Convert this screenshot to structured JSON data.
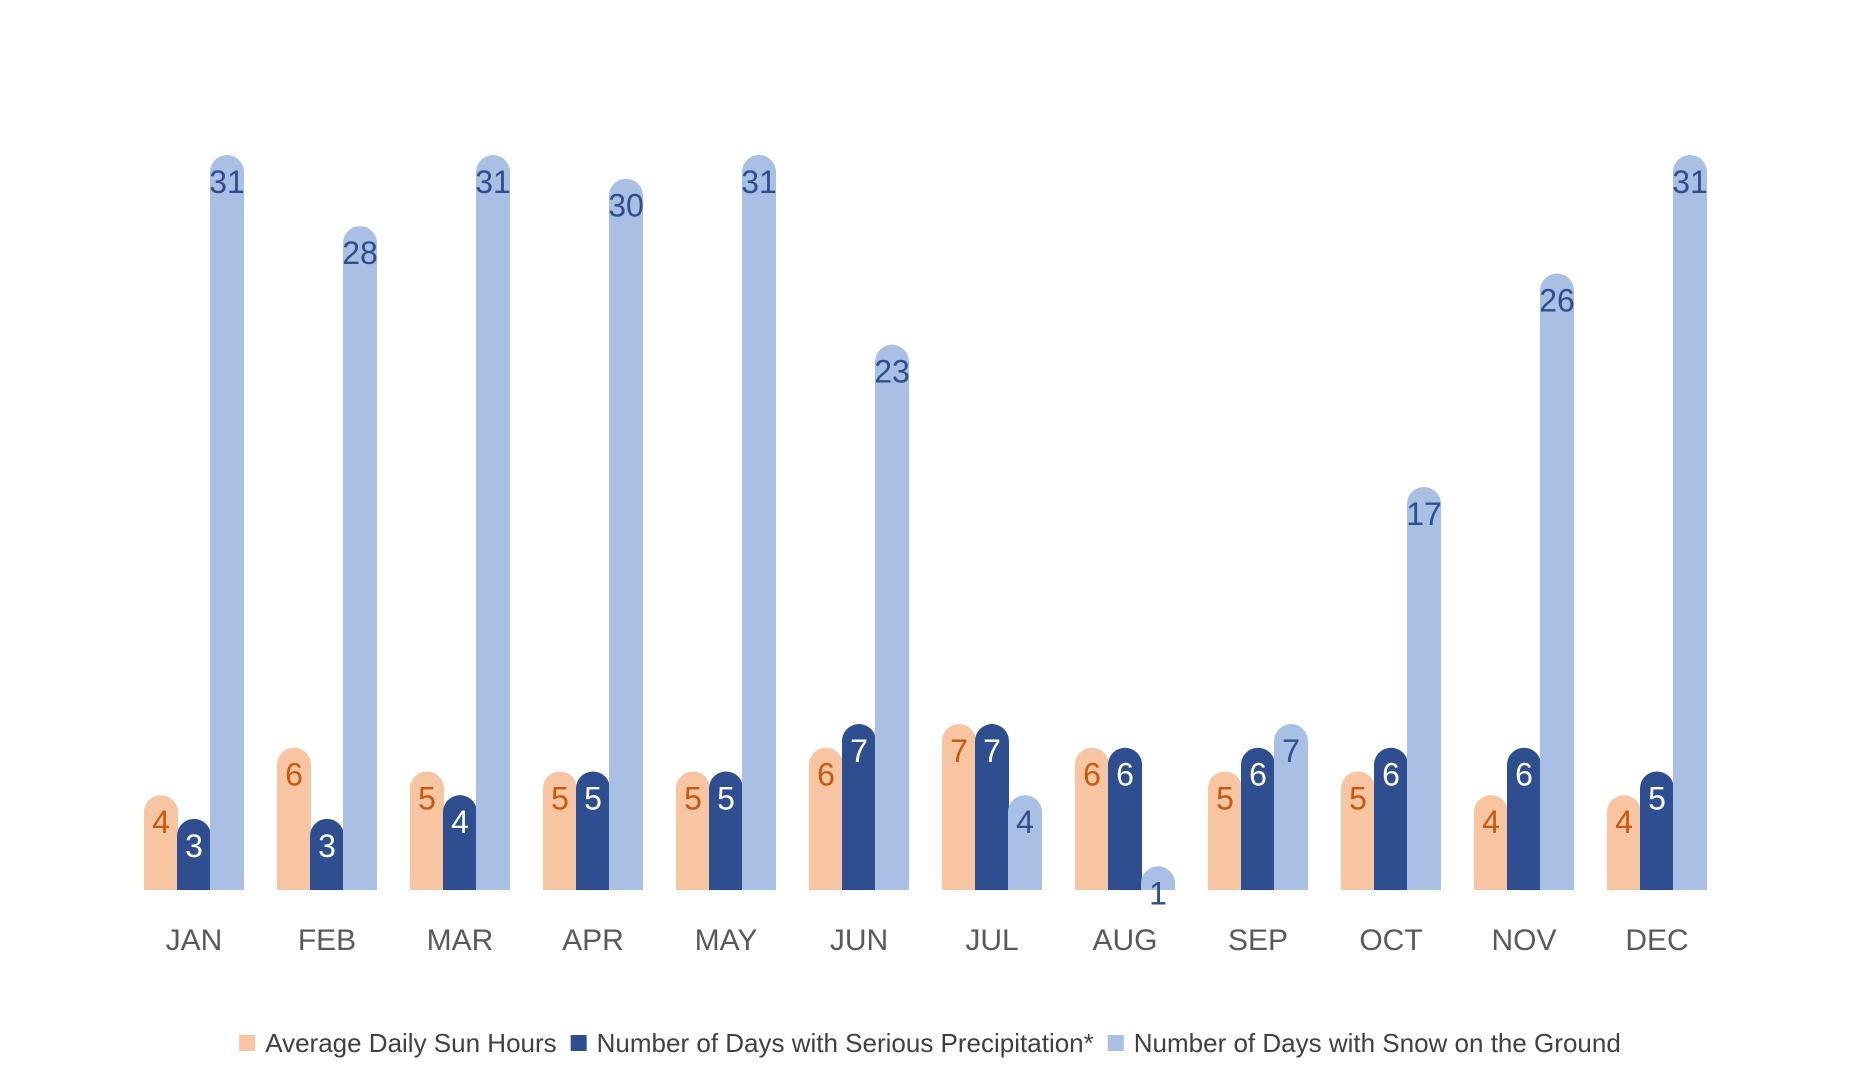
{
  "chart_data": {
    "type": "bar",
    "title": "",
    "xlabel": "",
    "ylabel": "",
    "ylim": [
      0,
      31
    ],
    "grid": false,
    "legend_position": "bottom",
    "categories": [
      "JAN",
      "FEB",
      "MAR",
      "APR",
      "MAY",
      "JUN",
      "JUL",
      "AUG",
      "SEP",
      "OCT",
      "NOV",
      "DEC"
    ],
    "series": [
      {
        "name": "Average Daily Sun Hours",
        "color": "#F8C5A2",
        "label_color": "#C55A11",
        "values": [
          4,
          6,
          5,
          5,
          5,
          6,
          7,
          6,
          5,
          5,
          4,
          4
        ]
      },
      {
        "name": "Number of Days with Serious Precipitation*",
        "color": "#2E4E8F",
        "label_color": "#FFFFFF",
        "values": [
          3,
          3,
          4,
          5,
          5,
          7,
          7,
          6,
          6,
          6,
          6,
          5
        ]
      },
      {
        "name": "Number of Days with Snow on the Ground",
        "color": "#AABFE4",
        "label_color": "#2F4E8E",
        "values": [
          31,
          28,
          31,
          30,
          31,
          23,
          4,
          1,
          7,
          17,
          26,
          31
        ]
      }
    ]
  }
}
